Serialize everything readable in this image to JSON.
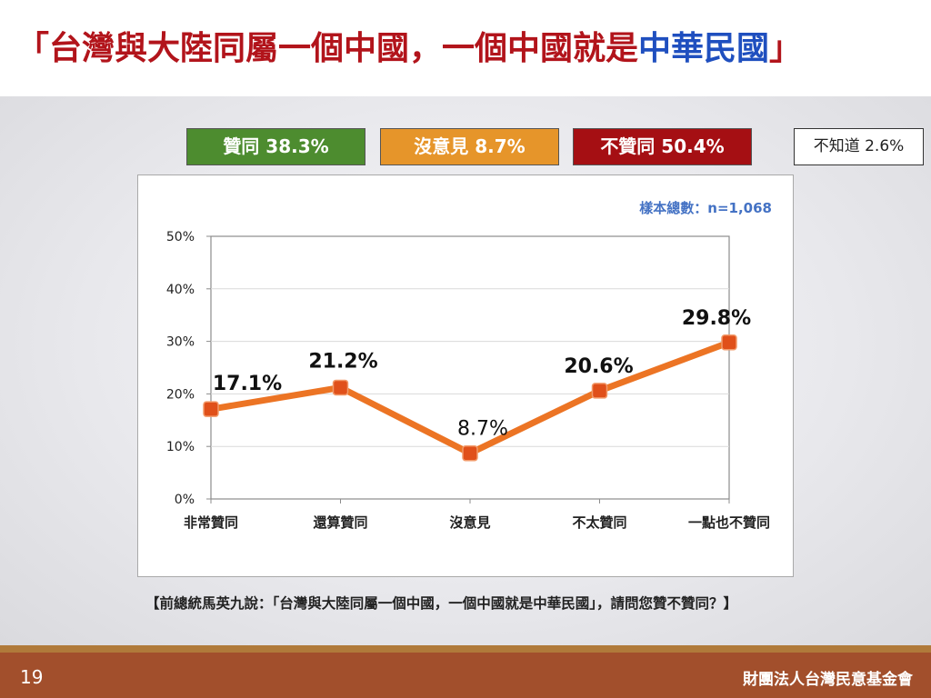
{
  "title": {
    "prefix": "「台灣與大陸同屬一個中國，一個中國就是",
    "highlight": "中華民國",
    "suffix": "」"
  },
  "summary": {
    "agree": "贊同 38.3%",
    "neutral": "沒意見 8.7%",
    "disagree": "不贊同 50.4%",
    "unknown": "不知道 2.6%"
  },
  "question": "【前總統馬英九說：「台灣與大陸同屬一個中國，一個中國就是中華民國」，請問您贊不贊同？】",
  "footer": {
    "page_number": "19",
    "organization": "財團法人台灣民意基金會"
  },
  "colors": {
    "title_red": "#b2141b",
    "title_blue": "#1f4fbf",
    "agree_green": "#4d8c2f",
    "neutral_orange": "#e6952a",
    "disagree_red": "#a50f13",
    "line_orange": "#ec7424",
    "marker_red": "#e0501a",
    "sample_blue": "#4472c4",
    "footer_brown": "#a24f2c"
  },
  "chart_data": {
    "type": "line",
    "categories": [
      "非常贊同",
      "還算贊同",
      "沒意見",
      "不太贊同",
      "一點也不贊同"
    ],
    "series": [
      {
        "values": [
          17.1,
          21.2,
          8.7,
          20.6,
          29.8
        ]
      }
    ],
    "data_labels": [
      "17.1%",
      "21.2%",
      "8.7%",
      "20.6%",
      "29.8%"
    ],
    "ylim": [
      0,
      50
    ],
    "yticks": [
      0,
      10,
      20,
      30,
      40,
      50
    ],
    "ytick_labels": [
      "0%",
      "10%",
      "20%",
      "30%",
      "40%",
      "50%"
    ],
    "sample_note": "樣本總數：n=1,068",
    "grid": true
  }
}
